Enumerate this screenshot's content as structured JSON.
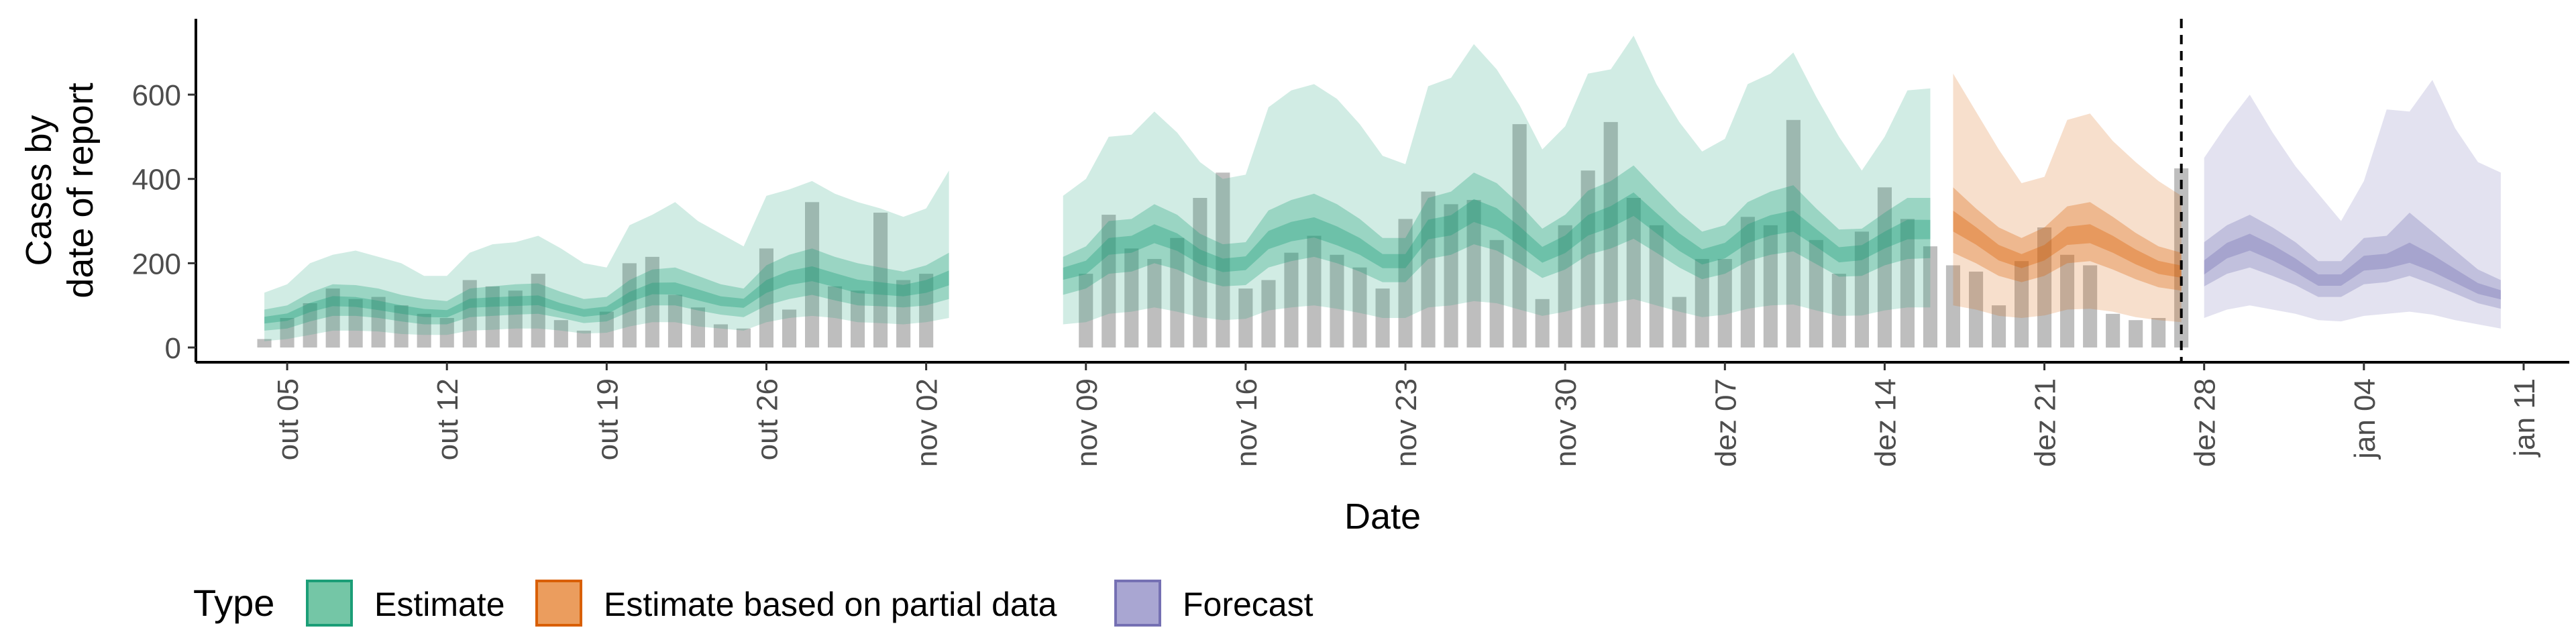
{
  "chart_data": {
    "type": "area",
    "title": "",
    "xlabel": "Date",
    "ylabel_lines": [
      "Cases by",
      "date of report"
    ],
    "ylim": [
      -35,
      780
    ],
    "y_ticks": [
      0,
      200,
      400,
      600
    ],
    "x_range": [
      "2020-10-01",
      "2021-01-13"
    ],
    "x_ticks": [
      {
        "date": "2020-10-05",
        "label": "out 05"
      },
      {
        "date": "2020-10-12",
        "label": "out 12"
      },
      {
        "date": "2020-10-19",
        "label": "out 19"
      },
      {
        "date": "2020-10-26",
        "label": "out 26"
      },
      {
        "date": "2020-11-02",
        "label": "nov 02"
      },
      {
        "date": "2020-11-09",
        "label": "nov 09"
      },
      {
        "date": "2020-11-16",
        "label": "nov 16"
      },
      {
        "date": "2020-11-23",
        "label": "nov 23"
      },
      {
        "date": "2020-11-30",
        "label": "nov 30"
      },
      {
        "date": "2020-12-07",
        "label": "dez 07"
      },
      {
        "date": "2020-12-14",
        "label": "dez 14"
      },
      {
        "date": "2020-12-21",
        "label": "dez 21"
      },
      {
        "date": "2020-12-28",
        "label": "dez 28"
      },
      {
        "date": "2021-01-04",
        "label": "jan 04"
      },
      {
        "date": "2021-01-11",
        "label": "jan 11"
      }
    ],
    "forecast_cutoff": "2020-12-27",
    "observed_cases": {
      "dates": [
        "2020-10-04",
        "2020-10-05",
        "2020-10-06",
        "2020-10-07",
        "2020-10-08",
        "2020-10-09",
        "2020-10-10",
        "2020-10-11",
        "2020-10-12",
        "2020-10-13",
        "2020-10-14",
        "2020-10-15",
        "2020-10-16",
        "2020-10-17",
        "2020-10-18",
        "2020-10-19",
        "2020-10-20",
        "2020-10-21",
        "2020-10-22",
        "2020-10-23",
        "2020-10-24",
        "2020-10-25",
        "2020-10-26",
        "2020-10-27",
        "2020-10-28",
        "2020-10-29",
        "2020-10-30",
        "2020-10-31",
        "2020-11-01",
        "2020-11-02",
        "2020-11-03",
        "2020-11-04",
        "2020-11-05",
        "2020-11-06",
        "2020-11-07",
        "2020-11-08",
        "2020-11-09",
        "2020-11-10",
        "2020-11-11",
        "2020-11-12",
        "2020-11-13",
        "2020-11-14",
        "2020-11-15",
        "2020-11-16",
        "2020-11-17",
        "2020-11-18",
        "2020-11-19",
        "2020-11-20",
        "2020-11-21",
        "2020-11-22",
        "2020-11-23",
        "2020-11-24",
        "2020-11-25",
        "2020-11-26",
        "2020-11-27",
        "2020-11-28",
        "2020-11-29",
        "2020-11-30",
        "2020-12-01",
        "2020-12-02",
        "2020-12-03",
        "2020-12-04",
        "2020-12-05",
        "2020-12-06",
        "2020-12-07",
        "2020-12-08",
        "2020-12-09",
        "2020-12-10",
        "2020-12-11",
        "2020-12-12",
        "2020-12-13",
        "2020-12-14",
        "2020-12-15",
        "2020-12-16",
        "2020-12-17",
        "2020-12-18",
        "2020-12-19",
        "2020-12-20",
        "2020-12-21",
        "2020-12-22",
        "2020-12-23",
        "2020-12-24",
        "2020-12-25",
        "2020-12-26",
        "2020-12-27"
      ],
      "values": [
        20,
        70,
        105,
        140,
        115,
        120,
        100,
        80,
        70,
        160,
        145,
        135,
        175,
        65,
        40,
        85,
        200,
        215,
        125,
        95,
        55,
        45,
        235,
        90,
        345,
        145,
        135,
        320,
        160,
        175,
        null,
        null,
        null,
        null,
        null,
        null,
        175,
        315,
        235,
        210,
        260,
        355,
        415,
        140,
        160,
        225,
        265,
        220,
        190,
        140,
        305,
        370,
        340,
        350,
        255,
        530,
        115,
        290,
        420,
        535,
        355,
        290,
        120,
        210,
        210,
        310,
        290,
        540,
        255,
        175,
        275,
        380,
        305,
        240,
        195,
        180,
        100,
        205,
        285,
        220,
        195,
        80,
        65,
        70,
        425
      ]
    },
    "series": [
      {
        "name": "Estimate",
        "color": "#1b9e77",
        "dates": [
          "2020-10-04",
          "2020-10-05",
          "2020-10-06",
          "2020-10-07",
          "2020-10-08",
          "2020-10-09",
          "2020-10-10",
          "2020-10-11",
          "2020-10-12",
          "2020-10-13",
          "2020-10-14",
          "2020-10-15",
          "2020-10-16",
          "2020-10-17",
          "2020-10-18",
          "2020-10-19",
          "2020-10-20",
          "2020-10-21",
          "2020-10-22",
          "2020-10-23",
          "2020-10-24",
          "2020-10-25",
          "2020-10-26",
          "2020-10-27",
          "2020-10-28",
          "2020-10-29",
          "2020-10-30",
          "2020-10-31",
          "2020-11-01",
          "2020-11-02",
          "2020-11-03"
        ],
        "median": [
          65,
          72,
          95,
          110,
          108,
          100,
          90,
          82,
          80,
          105,
          108,
          110,
          112,
          95,
          82,
          88,
          120,
          140,
          140,
          125,
          110,
          105,
          145,
          165,
          175,
          160,
          145,
          140,
          135,
          145,
          165
        ],
        "lower_90": [
          15,
          20,
          30,
          40,
          40,
          38,
          32,
          30,
          30,
          40,
          42,
          45,
          45,
          40,
          33,
          35,
          50,
          60,
          60,
          50,
          45,
          40,
          60,
          70,
          75,
          70,
          60,
          58,
          55,
          60,
          70
        ],
        "upper_90": [
          130,
          150,
          200,
          220,
          230,
          215,
          200,
          170,
          170,
          225,
          245,
          250,
          265,
          235,
          200,
          190,
          290,
          315,
          345,
          300,
          270,
          240,
          360,
          375,
          395,
          365,
          345,
          330,
          310,
          330,
          420
        ],
        "lower_50": [
          40,
          45,
          62,
          75,
          75,
          70,
          62,
          55,
          55,
          72,
          75,
          78,
          80,
          70,
          58,
          62,
          85,
          100,
          100,
          88,
          78,
          72,
          100,
          115,
          125,
          112,
          100,
          98,
          95,
          100,
          115
        ],
        "upper_50": [
          90,
          100,
          130,
          150,
          148,
          140,
          125,
          115,
          110,
          140,
          145,
          150,
          152,
          132,
          115,
          120,
          160,
          185,
          190,
          170,
          150,
          140,
          195,
          220,
          235,
          215,
          200,
          190,
          180,
          195,
          225
        ]
      },
      {
        "name": "Estimate",
        "color": "#1b9e77",
        "dates": [
          "2020-11-08",
          "2020-11-09",
          "2020-11-10",
          "2020-11-11",
          "2020-11-12",
          "2020-11-13",
          "2020-11-14",
          "2020-11-15",
          "2020-11-16",
          "2020-11-17",
          "2020-11-18",
          "2020-11-19",
          "2020-11-20",
          "2020-11-21",
          "2020-11-22",
          "2020-11-23",
          "2020-11-24",
          "2020-11-25",
          "2020-11-26",
          "2020-11-27",
          "2020-11-28",
          "2020-11-29",
          "2020-11-30",
          "2020-12-01",
          "2020-12-02",
          "2020-12-03",
          "2020-12-04",
          "2020-12-05",
          "2020-12-06",
          "2020-12-07",
          "2020-12-08",
          "2020-12-09",
          "2020-12-10",
          "2020-12-11",
          "2020-12-12",
          "2020-12-13",
          "2020-12-14",
          "2020-12-15",
          "2020-12-16"
        ],
        "median": [
          175,
          190,
          240,
          245,
          270,
          250,
          215,
          195,
          200,
          255,
          275,
          285,
          265,
          240,
          205,
          205,
          280,
          290,
          325,
          305,
          265,
          220,
          245,
          290,
          310,
          340,
          295,
          250,
          215,
          230,
          270,
          290,
          300,
          260,
          220,
          225,
          255,
          280,
          280
        ],
        "lower_90": [
          55,
          60,
          80,
          85,
          95,
          85,
          72,
          65,
          68,
          88,
          95,
          100,
          92,
          82,
          70,
          70,
          95,
          100,
          110,
          105,
          90,
          75,
          85,
          100,
          105,
          115,
          100,
          85,
          72,
          78,
          92,
          100,
          102,
          88,
          75,
          76,
          88,
          95,
          95
        ],
        "upper_90": [
          360,
          400,
          500,
          505,
          560,
          510,
          440,
          400,
          410,
          570,
          610,
          625,
          590,
          530,
          455,
          435,
          620,
          640,
          720,
          660,
          575,
          470,
          525,
          650,
          660,
          740,
          625,
          535,
          465,
          495,
          625,
          650,
          700,
          595,
          500,
          420,
          500,
          610,
          615
        ],
        "lower_50": [
          125,
          140,
          175,
          180,
          200,
          185,
          160,
          145,
          148,
          190,
          205,
          215,
          200,
          180,
          155,
          155,
          210,
          220,
          245,
          230,
          200,
          165,
          185,
          220,
          235,
          258,
          225,
          190,
          162,
          175,
          205,
          220,
          228,
          198,
          168,
          170,
          195,
          210,
          212
        ],
        "upper_50": [
          215,
          240,
          300,
          305,
          340,
          315,
          270,
          245,
          250,
          325,
          350,
          365,
          340,
          305,
          260,
          260,
          355,
          370,
          415,
          390,
          340,
          282,
          315,
          372,
          395,
          432,
          375,
          320,
          275,
          290,
          345,
          370,
          385,
          330,
          280,
          282,
          320,
          355,
          355
        ]
      },
      {
        "name": "Estimate based on partial data",
        "color": "#d95f02",
        "dates": [
          "2020-12-17",
          "2020-12-18",
          "2020-12-19",
          "2020-12-20",
          "2020-12-21",
          "2020-12-22",
          "2020-12-23",
          "2020-12-24",
          "2020-12-25",
          "2020-12-26",
          "2020-12-27"
        ],
        "median": [
          300,
          265,
          225,
          205,
          225,
          265,
          270,
          245,
          215,
          190,
          180
        ],
        "lower_90": [
          100,
          90,
          75,
          70,
          76,
          90,
          92,
          85,
          72,
          65,
          60
        ],
        "upper_90": [
          650,
          560,
          470,
          390,
          405,
          540,
          555,
          490,
          440,
          395,
          360
        ],
        "lower_50": [
          225,
          200,
          170,
          155,
          170,
          200,
          205,
          185,
          162,
          143,
          135
        ],
        "upper_50": [
          380,
          330,
          285,
          260,
          285,
          335,
          345,
          310,
          272,
          240,
          225
        ]
      },
      {
        "name": "Forecast",
        "color": "#7570b3",
        "dates": [
          "2020-12-28",
          "2020-12-29",
          "2020-12-30",
          "2020-12-31",
          "2021-01-01",
          "2021-01-02",
          "2021-01-03",
          "2021-01-04",
          "2021-01-05",
          "2021-01-06",
          "2021-01-07",
          "2021-01-08",
          "2021-01-09",
          "2021-01-10"
        ],
        "median": [
          190,
          230,
          250,
          225,
          195,
          160,
          160,
          200,
          205,
          225,
          200,
          170,
          140,
          125
        ],
        "lower_90": [
          70,
          90,
          100,
          90,
          80,
          65,
          62,
          75,
          80,
          85,
          78,
          65,
          55,
          45
        ],
        "upper_90": [
          450,
          530,
          600,
          510,
          430,
          365,
          300,
          395,
          565,
          560,
          635,
          520,
          440,
          415
        ],
        "lower_50": [
          145,
          175,
          190,
          170,
          148,
          120,
          120,
          150,
          155,
          170,
          150,
          128,
          105,
          92
        ],
        "upper_50": [
          250,
          290,
          315,
          285,
          250,
          205,
          205,
          260,
          265,
          320,
          275,
          230,
          185,
          160
        ]
      }
    ],
    "legend": {
      "title": "Type",
      "placement": "bottom-left",
      "items": [
        {
          "label": "Estimate",
          "fill": "#74c6a6",
          "stroke": "#1b9e77"
        },
        {
          "label": "Estimate based on partial data",
          "fill": "#eb9d5e",
          "stroke": "#d95f02"
        },
        {
          "label": "Forecast",
          "fill": "#a9a6d2",
          "stroke": "#7570b3"
        }
      ]
    }
  }
}
